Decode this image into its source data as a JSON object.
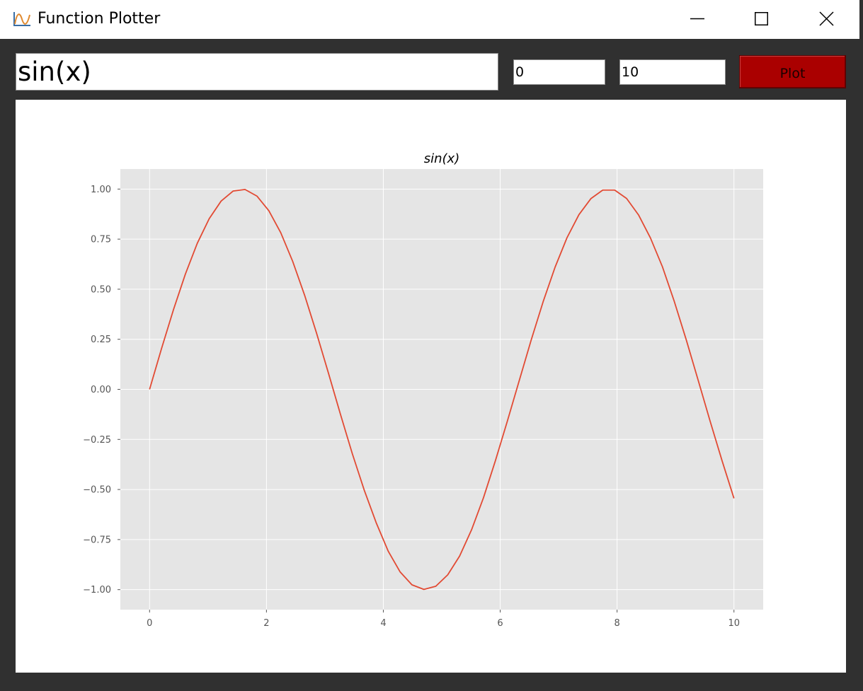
{
  "window": {
    "title": "Function Plotter",
    "app_icon": "chart-app-icon",
    "controls": [
      "minimize-icon",
      "maximize-icon",
      "close-icon"
    ]
  },
  "toolbar": {
    "expression_value": "sin(x)",
    "min_value": "0",
    "max_value": "10",
    "plot_label": "Plot",
    "plot_color": "#aa0000"
  },
  "chart_data": {
    "type": "line",
    "title": "sin(x)",
    "xlabel": "",
    "ylabel": "",
    "xlim": [
      -0.5,
      10.5
    ],
    "ylim": [
      -1.1,
      1.1
    ],
    "xticks": [
      0,
      2,
      4,
      6,
      8,
      10
    ],
    "xtick_labels": [
      "0",
      "2",
      "4",
      "6",
      "8",
      "10"
    ],
    "yticks": [
      1.0,
      0.75,
      0.5,
      0.25,
      0.0,
      -0.25,
      -0.5,
      -0.75,
      -1.0
    ],
    "ytick_labels": [
      "1.00",
      "0.75",
      "0.50",
      "0.25",
      "0.00",
      "−0.25",
      "−0.50",
      "−0.75",
      "−1.00"
    ],
    "grid": true,
    "style": "ggplot",
    "line_color": "#e24a33",
    "background_color": "#e5e5e5",
    "series": [
      {
        "x": [
          0,
          0.204,
          0.408,
          0.612,
          0.816,
          1.02,
          1.224,
          1.429,
          1.633,
          1.837,
          2.041,
          2.245,
          2.449,
          2.653,
          2.857,
          3.061,
          3.265,
          3.469,
          3.673,
          3.878,
          4.082,
          4.286,
          4.49,
          4.694,
          4.898,
          5.102,
          5.306,
          5.51,
          5.714,
          5.918,
          6.122,
          6.327,
          6.531,
          6.735,
          6.939,
          7.143,
          7.347,
          7.551,
          7.755,
          7.959,
          8.163,
          8.367,
          8.571,
          8.776,
          8.98,
          9.184,
          9.388,
          9.592,
          9.796,
          10
        ],
        "values": [
          0,
          0.203,
          0.397,
          0.575,
          0.729,
          0.852,
          0.94,
          0.99,
          0.998,
          0.965,
          0.892,
          0.782,
          0.639,
          0.47,
          0.281,
          0.081,
          -0.123,
          -0.321,
          -0.503,
          -0.666,
          -0.807,
          -0.911,
          -0.976,
          -0.999,
          -0.983,
          -0.926,
          -0.832,
          -0.701,
          -0.541,
          -0.356,
          -0.159,
          0.045,
          0.247,
          0.438,
          0.61,
          0.757,
          0.872,
          0.952,
          0.995,
          0.995,
          0.953,
          0.871,
          0.756,
          0.612,
          0.438,
          0.247,
          0.045,
          -0.159,
          -0.356,
          -0.544
        ]
      }
    ]
  }
}
